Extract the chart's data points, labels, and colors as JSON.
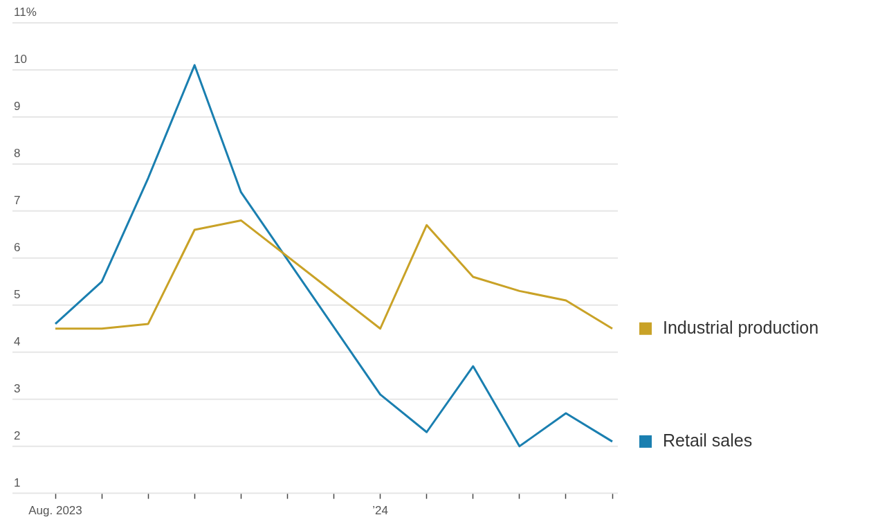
{
  "chart_data": {
    "type": "line",
    "categories": [
      "Aug. 2023",
      null,
      null,
      null,
      null,
      null,
      null,
      "’24",
      null,
      null,
      null,
      null,
      null
    ],
    "series": [
      {
        "name": "Industrial production",
        "color": "#c9a227",
        "values": [
          4.5,
          4.5,
          4.6,
          6.6,
          6.8,
          null,
          null,
          4.5,
          6.7,
          5.6,
          5.3,
          5.1,
          4.5
        ]
      },
      {
        "name": "Retail sales",
        "color": "#1a7fb0",
        "values": [
          4.6,
          5.5,
          7.7,
          10.1,
          7.4,
          null,
          null,
          3.1,
          2.3,
          3.7,
          2.0,
          2.7,
          2.1
        ]
      }
    ],
    "ylim": [
      1,
      11
    ],
    "yticks": [
      1,
      2,
      3,
      4,
      5,
      6,
      7,
      8,
      9,
      10,
      {
        "value": 11,
        "label": "11%"
      }
    ],
    "grid": "y",
    "legend": "right",
    "marker": "none",
    "line_style": "solid"
  }
}
